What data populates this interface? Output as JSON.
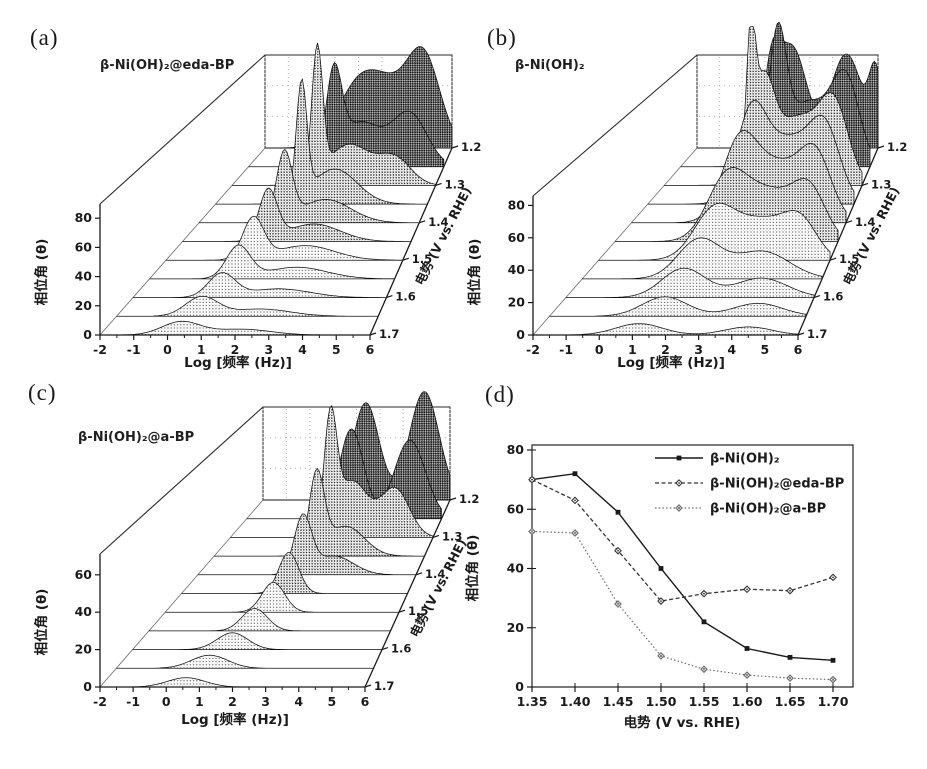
{
  "panels": {
    "a": {
      "letter": "(a)",
      "sample": "β-Ni(OH)₂@eda-BP"
    },
    "b": {
      "letter": "(b)",
      "sample": "β-Ni(OH)₂"
    },
    "c": {
      "letter": "(c)",
      "sample": "β-Ni(OH)₂@a-BP"
    },
    "d": {
      "letter": "(d)"
    }
  },
  "chart_data": [
    {
      "id": "a",
      "type": "line",
      "variant": "3d-waterfall-bode-phase",
      "title": "β-Ni(OH)₂@eda-BP",
      "xlabel": "Log [频率 (Hz)]",
      "ylabel": "相位角 (θ)",
      "zlabel": "电势 (V vs. RHE)",
      "xlim": [
        -2,
        6
      ],
      "xticks": [
        -2,
        -1,
        0,
        1,
        2,
        3,
        4,
        5,
        6
      ],
      "yticks": [
        0,
        20,
        40,
        60,
        80
      ],
      "ylim": [
        0,
        90
      ],
      "zticks": [
        1.2,
        1.3,
        1.4,
        1.5,
        1.6,
        1.7
      ],
      "grid": "back-wall-dotted",
      "slices": [
        {
          "v": 1.2,
          "peaks": [
            [
              2.0,
              42,
              1.3
            ],
            [
              3.4,
              30,
              1.2
            ],
            [
              4.8,
              60,
              1.0
            ]
          ]
        },
        {
          "v": 1.25,
          "peaks": [
            [
              1.5,
              58,
              0.45
            ],
            [
              2.6,
              30,
              1.2
            ],
            [
              4.6,
              36,
              1.0
            ]
          ]
        },
        {
          "v": 1.3,
          "peaks": [
            [
              1.35,
              88,
              0.3
            ],
            [
              2.6,
              28,
              1.2
            ],
            [
              4.4,
              18,
              0.9
            ]
          ]
        },
        {
          "v": 1.35,
          "peaks": [
            [
              1.25,
              78,
              0.28
            ],
            [
              2.5,
              24,
              1.2
            ]
          ]
        },
        {
          "v": 1.4,
          "peaks": [
            [
              1.1,
              46,
              0.4
            ],
            [
              2.6,
              16,
              1.3
            ]
          ]
        },
        {
          "v": 1.45,
          "peaks": [
            [
              1.0,
              34,
              0.45
            ],
            [
              2.6,
              12,
              1.3
            ]
          ]
        },
        {
          "v": 1.5,
          "peaks": [
            [
              0.95,
              28,
              0.5
            ],
            [
              2.7,
              10,
              1.4
            ]
          ]
        },
        {
          "v": 1.55,
          "peaks": [
            [
              0.9,
              22,
              0.55
            ],
            [
              2.8,
              8,
              1.4
            ]
          ]
        },
        {
          "v": 1.6,
          "peaks": [
            [
              0.8,
              16,
              0.6
            ],
            [
              2.6,
              6,
              1.4
            ]
          ]
        },
        {
          "v": 1.65,
          "peaks": [
            [
              0.6,
              13,
              0.7
            ],
            [
              2.4,
              5,
              1.3
            ]
          ]
        },
        {
          "v": 1.7,
          "peaks": [
            [
              0.4,
              9,
              0.8
            ],
            [
              2.2,
              4,
              1.2
            ]
          ]
        }
      ]
    },
    {
      "id": "b",
      "type": "line",
      "variant": "3d-waterfall-bode-phase",
      "title": "β-Ni(OH)₂",
      "xlabel": "Log [频率 (Hz)]",
      "ylabel": "相位角 (θ)",
      "zlabel": "电势 (V vs. RHE)",
      "xlim": [
        -2,
        6
      ],
      "xticks": [
        -2,
        -1,
        0,
        1,
        2,
        3,
        4,
        5,
        6
      ],
      "yticks": [
        0,
        20,
        40,
        60,
        80
      ],
      "ylim": [
        0,
        90
      ],
      "zticks": [
        1.2,
        1.3,
        1.4,
        1.5,
        1.6,
        1.7
      ],
      "grid": "back-wall-dotted",
      "slices": [
        {
          "v": 1.2,
          "peaks": [
            [
              1.3,
              42,
              0.5
            ],
            [
              2.2,
              62,
              0.9
            ],
            [
              4.6,
              58,
              1.0
            ],
            [
              5.9,
              42,
              0.4
            ]
          ]
        },
        {
          "v": 1.25,
          "peaks": [
            [
              2.1,
              70,
              0.5
            ],
            [
              3.4,
              40,
              1.5
            ],
            [
              5.0,
              46,
              0.8
            ]
          ]
        },
        {
          "v": 1.3,
          "peaks": [
            [
              1.5,
              72,
              0.25
            ],
            [
              2.0,
              52,
              0.6
            ],
            [
              3.4,
              42,
              1.5
            ],
            [
              4.9,
              40,
              0.8
            ]
          ]
        },
        {
          "v": 1.35,
          "peaks": [
            [
              2.0,
              48,
              0.8
            ],
            [
              3.5,
              40,
              1.5
            ],
            [
              4.9,
              36,
              0.8
            ]
          ]
        },
        {
          "v": 1.4,
          "peaks": [
            [
              2.0,
              42,
              0.9
            ],
            [
              3.5,
              36,
              1.5
            ],
            [
              4.9,
              32,
              0.8
            ]
          ]
        },
        {
          "v": 1.45,
          "peaks": [
            [
              2.0,
              36,
              1.0
            ],
            [
              3.6,
              30,
              1.4
            ],
            [
              5.0,
              26,
              0.8
            ]
          ]
        },
        {
          "v": 1.5,
          "peaks": [
            [
              2.0,
              30,
              1.0
            ],
            [
              3.7,
              24,
              1.3
            ],
            [
              5.0,
              20,
              0.8
            ]
          ]
        },
        {
          "v": 1.55,
          "peaks": [
            [
              1.9,
              24,
              1.0
            ],
            [
              4.0,
              17,
              1.3
            ]
          ]
        },
        {
          "v": 1.6,
          "peaks": [
            [
              1.8,
              18,
              1.0
            ],
            [
              4.3,
              12,
              1.2
            ]
          ]
        },
        {
          "v": 1.65,
          "peaks": [
            [
              1.6,
              12,
              1.0
            ],
            [
              4.5,
              8,
              1.1
            ]
          ]
        },
        {
          "v": 1.7,
          "peaks": [
            [
              1.2,
              7,
              1.0
            ],
            [
              4.5,
              5,
              1.0
            ]
          ]
        }
      ]
    },
    {
      "id": "c",
      "type": "line",
      "variant": "3d-waterfall-bode-phase",
      "title": "β-Ni(OH)₂@a-BP",
      "xlabel": "Log [频率 (Hz)]",
      "ylabel": "相位角 (θ)",
      "zlabel": "电势 (V vs. RHE)",
      "xlim": [
        -2,
        6
      ],
      "xticks": [
        -2,
        -1,
        0,
        1,
        2,
        3,
        4,
        5,
        6
      ],
      "yticks": [
        0,
        20,
        40,
        60
      ],
      "ylim": [
        0,
        70
      ],
      "zticks": [
        1.2,
        1.3,
        1.4,
        1.5,
        1.6,
        1.7
      ],
      "grid": "back-wall-dotted",
      "slices": [
        {
          "v": 1.2,
          "peaks": [
            [
              2.4,
              52,
              0.8
            ],
            [
              4.9,
              58,
              0.9
            ]
          ]
        },
        {
          "v": 1.25,
          "peaks": [
            [
              2.3,
              48,
              0.7
            ],
            [
              4.7,
              42,
              0.9
            ]
          ]
        },
        {
          "v": 1.3,
          "peaks": [
            [
              1.95,
              58,
              0.35
            ],
            [
              2.8,
              30,
              0.9
            ],
            [
              4.5,
              26,
              0.8
            ]
          ]
        },
        {
          "v": 1.35,
          "peaks": [
            [
              1.9,
              42,
              0.4
            ],
            [
              3.0,
              16,
              1.0
            ]
          ]
        },
        {
          "v": 1.4,
          "peaks": [
            [
              1.85,
              30,
              0.45
            ],
            [
              3.0,
              10,
              1.0
            ]
          ]
        },
        {
          "v": 1.45,
          "peaks": [
            [
              1.8,
              22,
              0.5
            ]
          ]
        },
        {
          "v": 1.5,
          "peaks": [
            [
              1.7,
              16,
              0.55
            ]
          ]
        },
        {
          "v": 1.55,
          "peaks": [
            [
              1.5,
              12,
              0.6
            ]
          ]
        },
        {
          "v": 1.6,
          "peaks": [
            [
              1.2,
              9,
              0.7
            ]
          ]
        },
        {
          "v": 1.65,
          "peaks": [
            [
              0.9,
              7,
              0.8
            ]
          ]
        },
        {
          "v": 1.7,
          "peaks": [
            [
              0.6,
              5,
              0.8
            ]
          ]
        }
      ]
    },
    {
      "id": "d",
      "type": "line",
      "xlabel": "电势 (V vs. RHE)",
      "ylabel": "相位角 (θ)",
      "x": [
        1.35,
        1.4,
        1.45,
        1.5,
        1.55,
        1.6,
        1.65,
        1.7
      ],
      "xticks": [
        1.35,
        1.4,
        1.45,
        1.5,
        1.55,
        1.6,
        1.65,
        1.7
      ],
      "yticks": [
        0,
        20,
        40,
        60,
        80
      ],
      "ylim": [
        0,
        80
      ],
      "grid": "off",
      "legend_position": "top-right",
      "series": [
        {
          "name": "β-Ni(OH)₂",
          "values": [
            70,
            72,
            59,
            40,
            22,
            13,
            10,
            9
          ]
        },
        {
          "name": "β-Ni(OH)₂@eda-BP",
          "values": [
            70,
            63,
            46,
            29,
            31.5,
            33,
            32.5,
            37
          ]
        },
        {
          "name": "β-Ni(OH)₂@a-BP",
          "values": [
            52.5,
            52,
            28,
            10.5,
            6,
            4,
            3,
            2.5
          ]
        }
      ]
    }
  ],
  "colors": {
    "ink": "#1a1a1a",
    "series1": "#1a1a1a",
    "series2": "#333333",
    "series3": "#6b6b6b",
    "grid_dot": "#b0b0b0",
    "background": "#ffffff"
  }
}
